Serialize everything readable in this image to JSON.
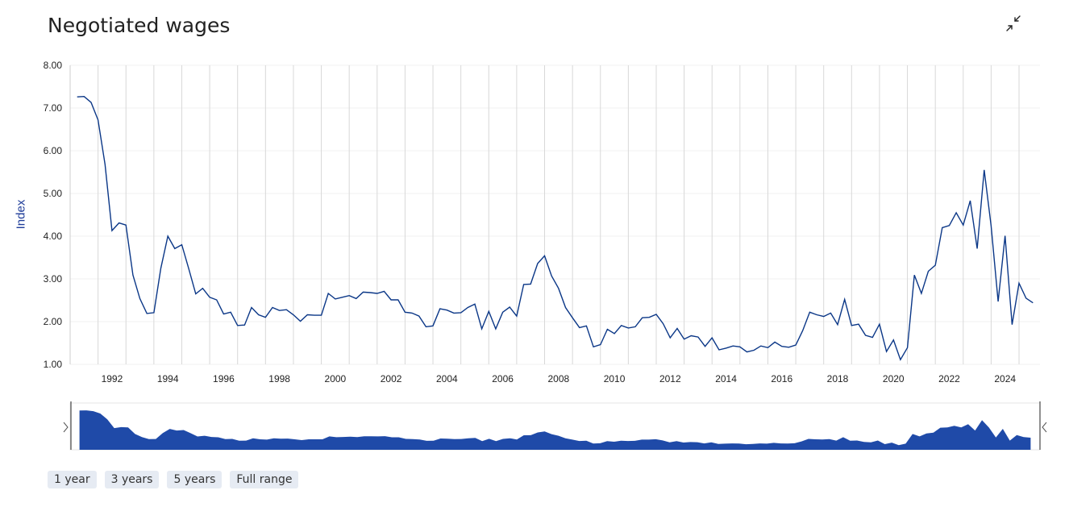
{
  "header": {
    "title": "Negotiated wages",
    "collapse_icon": "collapse-arrows-icon"
  },
  "colors": {
    "line": "#0b3787",
    "navigator_fill": "#1f4aa8",
    "grid": "#d8d8d8"
  },
  "range_selector": {
    "buttons": [
      "1 year",
      "3 years",
      "5 years",
      "Full range"
    ]
  },
  "chart_data": {
    "type": "line",
    "title": "Negotiated wages",
    "ylabel": "Index",
    "xlabel": "",
    "ylim": [
      1.0,
      8.0
    ],
    "yticks": [
      "1.00",
      "2.00",
      "3.00",
      "4.00",
      "5.00",
      "6.00",
      "7.00",
      "8.00"
    ],
    "xticks": [
      "1992",
      "1994",
      "1996",
      "1998",
      "2000",
      "2002",
      "2004",
      "2006",
      "2008",
      "2010",
      "2012",
      "2014",
      "2016",
      "2018",
      "2020",
      "2022",
      "2024"
    ],
    "xlim": [
      1991.0,
      2025.75
    ],
    "grid": "vertical yearly lines",
    "navigator": true,
    "series": [
      {
        "values_start": 1991.25,
        "values_step": 0.25,
        "values": [
          7.26,
          7.27,
          7.13,
          6.72,
          5.68,
          4.13,
          4.31,
          4.26,
          3.09,
          2.54,
          2.19,
          2.21,
          3.25,
          4.0,
          3.71,
          3.8,
          3.24,
          2.65,
          2.78,
          2.57,
          2.51,
          2.18,
          2.22,
          1.91,
          1.92,
          2.33,
          2.16,
          2.1,
          2.33,
          2.26,
          2.28,
          2.16,
          2.01,
          2.16,
          2.15,
          2.15,
          2.66,
          2.53,
          2.57,
          2.61,
          2.54,
          2.69,
          2.68,
          2.66,
          2.71,
          2.51,
          2.51,
          2.22,
          2.2,
          2.13,
          1.88,
          1.9,
          2.3,
          2.27,
          2.2,
          2.21,
          2.33,
          2.41,
          1.83,
          2.24,
          1.83,
          2.22,
          2.34,
          2.13,
          2.87,
          2.88,
          3.36,
          3.54,
          3.07,
          2.78,
          2.33,
          2.09,
          1.86,
          1.9,
          1.41,
          1.46,
          1.82,
          1.72,
          1.91,
          1.85,
          1.88,
          2.09,
          2.1,
          2.17,
          1.95,
          1.62,
          1.84,
          1.59,
          1.67,
          1.64,
          1.42,
          1.62,
          1.34,
          1.38,
          1.43,
          1.41,
          1.29,
          1.33,
          1.43,
          1.39,
          1.52,
          1.42,
          1.4,
          1.45,
          1.79,
          2.22,
          2.16,
          2.12,
          2.2,
          1.93,
          2.52,
          1.91,
          1.94,
          1.68,
          1.63,
          1.94,
          1.3,
          1.57,
          1.11,
          1.39,
          3.09,
          2.66,
          3.18,
          3.32,
          4.2,
          4.25,
          4.55,
          4.26,
          4.83,
          3.71,
          5.55,
          4.24,
          2.47,
          4.01,
          1.93,
          2.9,
          2.55,
          2.44
        ]
      }
    ]
  }
}
